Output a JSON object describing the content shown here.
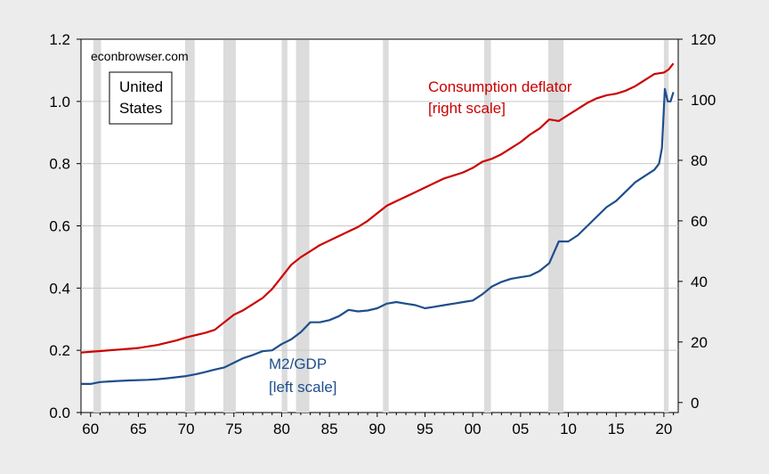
{
  "chart_data": {
    "type": "line",
    "credit": "econbrowser.com",
    "region_label": [
      "United",
      "States"
    ],
    "x_range": [
      1959,
      2021.5
    ],
    "x_ticks": [
      {
        "year": 1960,
        "label": "60"
      },
      {
        "year": 1965,
        "label": "65"
      },
      {
        "year": 1970,
        "label": "70"
      },
      {
        "year": 1975,
        "label": "75"
      },
      {
        "year": 1980,
        "label": "80"
      },
      {
        "year": 1985,
        "label": "85"
      },
      {
        "year": 1990,
        "label": "90"
      },
      {
        "year": 1995,
        "label": "95"
      },
      {
        "year": 2000,
        "label": "00"
      },
      {
        "year": 2005,
        "label": "05"
      },
      {
        "year": 2010,
        "label": "10"
      },
      {
        "year": 2015,
        "label": "15"
      },
      {
        "year": 2020,
        "label": "20"
      }
    ],
    "left_axis": {
      "range": [
        0.0,
        1.2
      ],
      "ticks": [
        "0.0",
        "0.2",
        "0.4",
        "0.6",
        "0.8",
        "1.0",
        "1.2"
      ]
    },
    "right_axis": {
      "range": [
        -3.3,
        120
      ],
      "ticks": [
        "0",
        "20",
        "40",
        "60",
        "80",
        "100",
        "120"
      ]
    },
    "recessions": [
      [
        1960.3,
        1961.1
      ],
      [
        1969.9,
        1970.9
      ],
      [
        1973.9,
        1975.2
      ],
      [
        1980.0,
        1980.6
      ],
      [
        1981.5,
        1982.9
      ],
      [
        1990.6,
        1991.2
      ],
      [
        2001.2,
        2001.9
      ],
      [
        2007.9,
        2009.5
      ],
      [
        2020.0,
        2020.5
      ]
    ],
    "series": [
      {
        "name": "M2/GDP",
        "label_lines": [
          "M2/GDP",
          "[left scale]"
        ],
        "axis": "left",
        "color": "#1f4e8c",
        "points": [
          [
            1959,
            0.092
          ],
          [
            1960,
            0.092
          ],
          [
            1961,
            0.098
          ],
          [
            1962,
            0.1
          ],
          [
            1964,
            0.103
          ],
          [
            1966,
            0.105
          ],
          [
            1967,
            0.107
          ],
          [
            1968,
            0.11
          ],
          [
            1970,
            0.117
          ],
          [
            1971,
            0.123
          ],
          [
            1972,
            0.13
          ],
          [
            1973,
            0.138
          ],
          [
            1974,
            0.145
          ],
          [
            1975,
            0.16
          ],
          [
            1976,
            0.175
          ],
          [
            1977,
            0.185
          ],
          [
            1978,
            0.197
          ],
          [
            1979,
            0.2
          ],
          [
            1980,
            0.22
          ],
          [
            1981,
            0.235
          ],
          [
            1982,
            0.258
          ],
          [
            1983,
            0.29
          ],
          [
            1984,
            0.29
          ],
          [
            1985,
            0.297
          ],
          [
            1986,
            0.31
          ],
          [
            1987,
            0.33
          ],
          [
            1988,
            0.325
          ],
          [
            1989,
            0.328
          ],
          [
            1990,
            0.335
          ],
          [
            1991,
            0.35
          ],
          [
            1992,
            0.355
          ],
          [
            1993,
            0.35
          ],
          [
            1994,
            0.345
          ],
          [
            1995,
            0.335
          ],
          [
            1996,
            0.34
          ],
          [
            1997,
            0.345
          ],
          [
            1998,
            0.35
          ],
          [
            1999,
            0.355
          ],
          [
            2000,
            0.36
          ],
          [
            2001,
            0.38
          ],
          [
            2002,
            0.405
          ],
          [
            2003,
            0.42
          ],
          [
            2004,
            0.43
          ],
          [
            2005,
            0.435
          ],
          [
            2006,
            0.44
          ],
          [
            2007,
            0.455
          ],
          [
            2008,
            0.48
          ],
          [
            2009,
            0.55
          ],
          [
            2010,
            0.55
          ],
          [
            2011,
            0.57
          ],
          [
            2012,
            0.6
          ],
          [
            2013,
            0.63
          ],
          [
            2014,
            0.66
          ],
          [
            2015,
            0.68
          ],
          [
            2016,
            0.71
          ],
          [
            2017,
            0.74
          ],
          [
            2018,
            0.76
          ],
          [
            2019,
            0.78
          ],
          [
            2019.5,
            0.8
          ],
          [
            2019.8,
            0.85
          ],
          [
            2020.1,
            1.04
          ],
          [
            2020.4,
            1.0
          ],
          [
            2020.7,
            1.0
          ],
          [
            2021,
            1.03
          ]
        ]
      },
      {
        "name": "Consumption deflator",
        "label_lines": [
          "Consumption deflator",
          "[right scale]"
        ],
        "axis": "right",
        "color": "#cc0000",
        "points": [
          [
            1959,
            16.5
          ],
          [
            1961,
            17
          ],
          [
            1963,
            17.5
          ],
          [
            1965,
            18
          ],
          [
            1967,
            19
          ],
          [
            1969,
            20.5
          ],
          [
            1970,
            21.5
          ],
          [
            1972,
            23
          ],
          [
            1973,
            24
          ],
          [
            1974,
            26.5
          ],
          [
            1975,
            29
          ],
          [
            1976,
            30.5
          ],
          [
            1977,
            32.5
          ],
          [
            1978,
            34.5
          ],
          [
            1979,
            37.5
          ],
          [
            1980,
            41.5
          ],
          [
            1981,
            45.5
          ],
          [
            1982,
            48
          ],
          [
            1983,
            50
          ],
          [
            1984,
            52
          ],
          [
            1985,
            53.5
          ],
          [
            1986,
            55
          ],
          [
            1987,
            56.5
          ],
          [
            1988,
            58
          ],
          [
            1989,
            60
          ],
          [
            1990,
            62.5
          ],
          [
            1991,
            65
          ],
          [
            1992,
            66.5
          ],
          [
            1993,
            68
          ],
          [
            1994,
            69.5
          ],
          [
            1995,
            71
          ],
          [
            1996,
            72.5
          ],
          [
            1997,
            74
          ],
          [
            1998,
            75
          ],
          [
            1999,
            76
          ],
          [
            2000,
            77.5
          ],
          [
            2001,
            79.5
          ],
          [
            2002,
            80.5
          ],
          [
            2003,
            82
          ],
          [
            2004,
            84
          ],
          [
            2005,
            86
          ],
          [
            2006,
            88.5
          ],
          [
            2007,
            90.5
          ],
          [
            2008,
            93.5
          ],
          [
            2009,
            93
          ],
          [
            2010,
            95
          ],
          [
            2011,
            97
          ],
          [
            2012,
            99
          ],
          [
            2013,
            100.5
          ],
          [
            2014,
            101.5
          ],
          [
            2015,
            102
          ],
          [
            2016,
            103
          ],
          [
            2017,
            104.5
          ],
          [
            2018,
            106.5
          ],
          [
            2019,
            108.5
          ],
          [
            2020,
            109
          ],
          [
            2020.5,
            110
          ],
          [
            2021,
            112
          ]
        ]
      }
    ]
  }
}
